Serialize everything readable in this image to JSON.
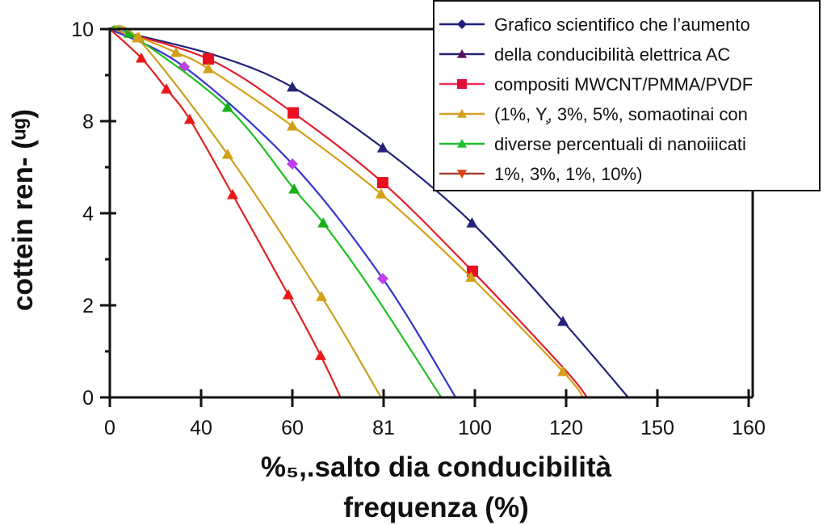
{
  "chart_data": {
    "type": "line",
    "title": "",
    "xlabel_lines": [
      "%₅,.salto dia conducibilità",
      "frequenza (%)"
    ],
    "ylabel": "cottein ren- (ᵘᵍ)",
    "x_ticks": [
      0,
      40,
      60,
      81,
      100,
      120,
      150,
      160
    ],
    "x_tick_labels": [
      "0",
      "40",
      "60",
      "81",
      "100",
      "120",
      "150",
      "160"
    ],
    "y_ticks": [
      0,
      2,
      4,
      8,
      10
    ],
    "y_tick_labels": [
      "0",
      "2",
      "4",
      "8",
      "10"
    ],
    "xlim": [
      0,
      160
    ],
    "ylim": [
      0,
      10
    ],
    "grid": false,
    "legend_position": "top-right",
    "legend": [
      "Grafico scientifico che l’aumento",
      "della conducibilità elettrica AC",
      "compositi MWCNT/PMMA/PVDF",
      "(1%, Υ̧, 3%, 5%, somaotinai con",
      "diverse percentuali di nanoiiicati",
      "1%, 3%, 1%, 10%)"
    ],
    "legend_series": [
      {
        "color": "#1f1f7a",
        "marker": "diamond"
      },
      {
        "color": "#2a2070",
        "marker": "triangle-up",
        "marker_color": "#5a1060"
      },
      {
        "color": "#e8305a",
        "marker": "square",
        "marker_color": "#e0103a"
      },
      {
        "color": "#d4a020",
        "marker": "triangle-up"
      },
      {
        "color": "#20c030",
        "marker": "triangle-up"
      },
      {
        "color": "#a04030",
        "marker": "triangle-down",
        "marker_color": "#e04010"
      }
    ],
    "series": [
      {
        "name": "navy",
        "color": "#23237a",
        "marker": "triangle-up",
        "marker_color": "#23237a",
        "x": [
          0,
          42.8,
          60,
          80.8,
          99.4,
          119.3,
          140.4
        ],
        "y": [
          10,
          9.44,
          8.74,
          6.84,
          3.79,
          1.65,
          0
        ],
        "markers": [
          2,
          3,
          4,
          5
        ]
      },
      {
        "name": "red-right",
        "color": "#e0202e",
        "marker": "square",
        "marker_color": "#e81020",
        "x": [
          0,
          41.6,
          60.2,
          80.8,
          99.5,
          119.5,
          126.9
        ],
        "y": [
          10,
          9.35,
          8.18,
          5.33,
          2.74,
          0.63,
          0
        ],
        "markers": [
          1,
          2,
          3,
          4
        ]
      },
      {
        "name": "gold-right",
        "color": "#d4a017",
        "marker": "triangle-up",
        "marker_color": "#d4a017",
        "x": [
          0,
          12.7,
          29,
          41.6,
          60,
          80.4,
          99.2,
          119.3,
          125.6
        ],
        "y": [
          10,
          9.82,
          9.49,
          9.14,
          7.79,
          4.84,
          2.61,
          0.56,
          0
        ],
        "markers": [
          1,
          2,
          3,
          4,
          5,
          6,
          7
        ]
      },
      {
        "name": "blue",
        "color": "#3535d0",
        "marker": "diamond",
        "marker_color": "#c040e8",
        "x": [
          0,
          32.6,
          60,
          80.8,
          96
        ],
        "y": [
          10,
          9.18,
          6.14,
          2.58,
          0
        ],
        "markers": [
          1,
          2,
          3
        ]
      },
      {
        "name": "green",
        "color": "#20c020",
        "marker": "triangle-up",
        "marker_color": "#18b018",
        "x": [
          0,
          8.5,
          45.8,
          60.4,
          67.1,
          78.3,
          93
        ],
        "y": [
          10,
          9.91,
          8.3,
          5.05,
          3.79,
          2.32,
          0
        ],
        "markers": [
          1,
          2,
          3,
          4
        ]
      },
      {
        "name": "gold-left",
        "color": "#c9a020",
        "marker": "triangle-up",
        "marker_color": "#d4a017",
        "x": [
          0,
          12,
          45.8,
          66.7,
          80.4
        ],
        "y": [
          10,
          9.81,
          6.56,
          2.19,
          0
        ],
        "markers": [
          1,
          2,
          3
        ]
      },
      {
        "name": "red-left",
        "color": "#e02020",
        "marker": "triangle-up",
        "marker_color": "#e81818",
        "x": [
          0,
          13.8,
          24.8,
          35,
          46.9,
          59.1,
          66.5,
          71.1
        ],
        "y": [
          10,
          9.37,
          8.7,
          8.04,
          4.81,
          2.23,
          0.91,
          0
        ],
        "markers": [
          1,
          2,
          3,
          4,
          5,
          6
        ]
      }
    ]
  }
}
